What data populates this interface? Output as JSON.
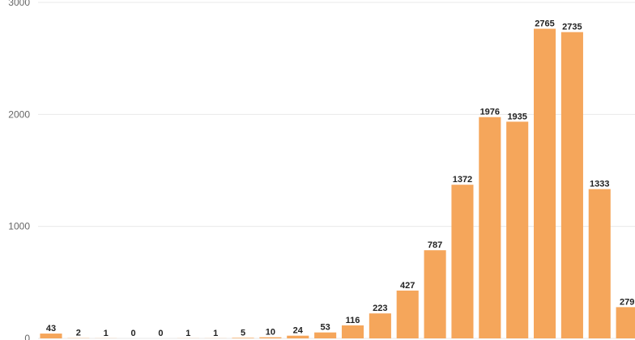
{
  "chart_data": {
    "type": "bar",
    "categories": [
      "",
      "",
      "",
      "",
      "",
      "",
      "",
      "",
      "",
      "",
      "",
      "",
      "",
      "",
      "",
      "",
      "",
      "",
      "",
      "",
      "",
      ""
    ],
    "values": [
      43,
      2,
      1,
      0,
      0,
      1,
      1,
      5,
      10,
      24,
      53,
      116,
      223,
      427,
      787,
      1372,
      1976,
      1935,
      2765,
      2735,
      1333,
      279
    ],
    "ylim": [
      0,
      3000
    ],
    "yticks": [
      0,
      1000,
      2000,
      3000
    ],
    "grid": true,
    "bar_color": "#F5A65B",
    "title": "",
    "xlabel": "",
    "ylabel": ""
  }
}
